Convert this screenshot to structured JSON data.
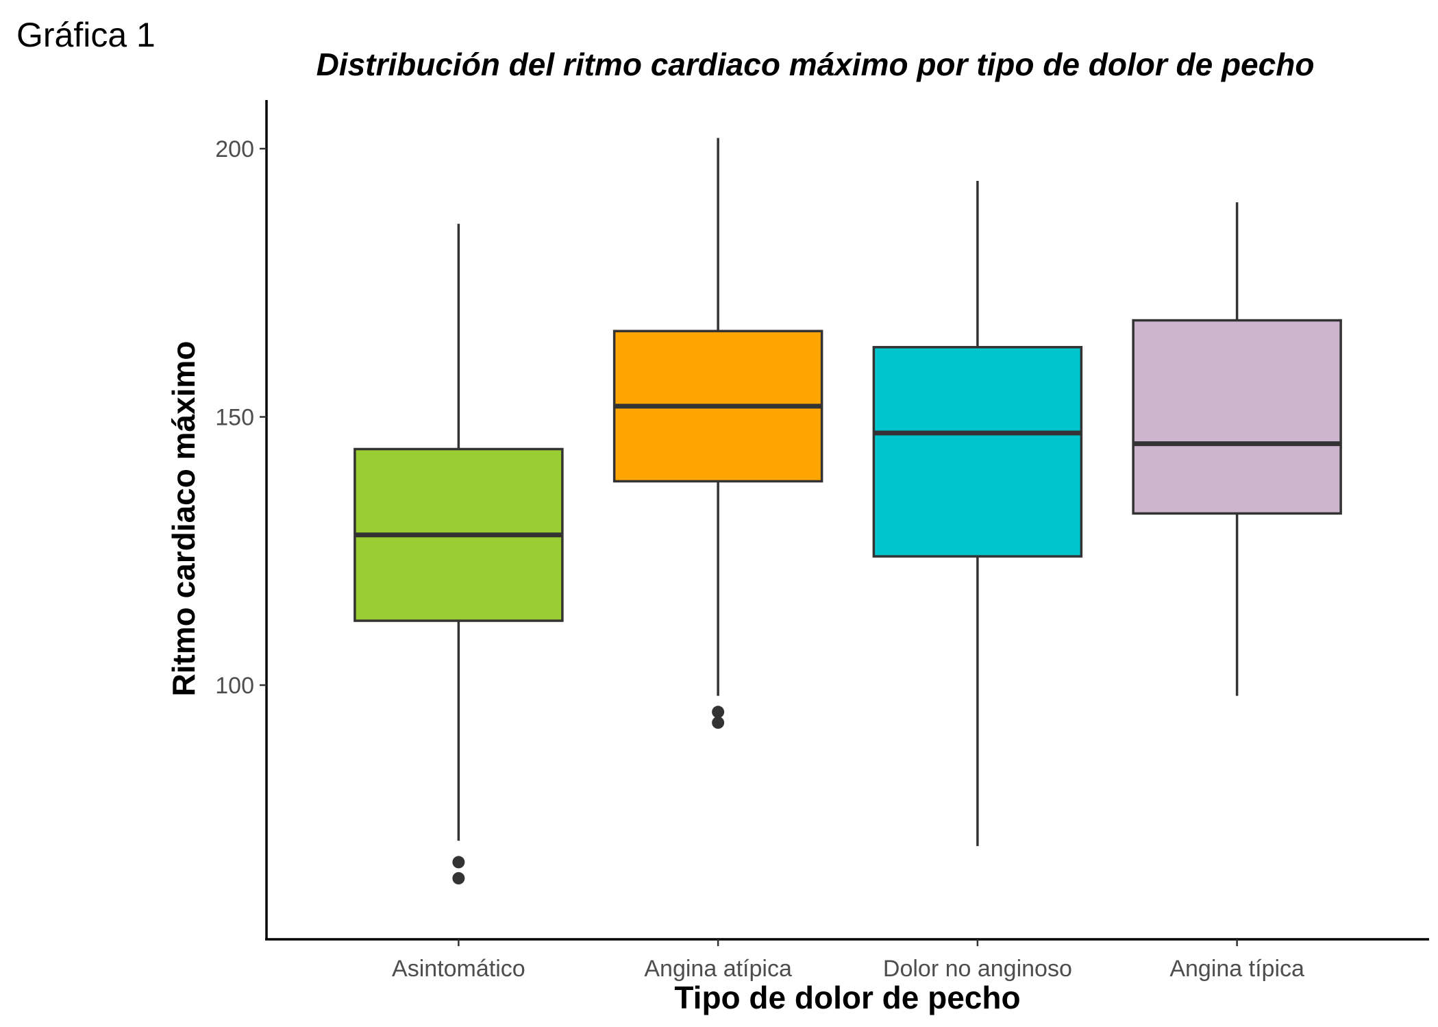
{
  "figure_label": "Gráfica 1",
  "chart_data": {
    "type": "boxplot",
    "title": "Distribución del ritmo cardiaco máximo por tipo de dolor de pecho",
    "xlabel": "Tipo de dolor de pecho",
    "ylabel": "Ritmo cardiaco máximo",
    "ylim": [
      65,
      210
    ],
    "yticks": [
      100,
      150,
      200
    ],
    "ytick_labels": [
      "100",
      "150",
      "200"
    ],
    "grid": false,
    "legend": "none",
    "categories": [
      "Asintomático",
      "Angina atípica",
      "Dolor no anginoso",
      "Angina típica"
    ],
    "boxes": [
      {
        "category": "Asintomático",
        "whisker_low": 71,
        "q1": 112,
        "median": 128,
        "q3": 144,
        "whisker_high": 186,
        "outliers": [
          64,
          67
        ],
        "color": "#9ACD32"
      },
      {
        "category": "Angina atípica",
        "whisker_low": 98,
        "q1": 138,
        "median": 152,
        "q3": 166,
        "whisker_high": 202,
        "outliers": [
          93,
          95
        ],
        "color": "#FFA500"
      },
      {
        "category": "Dolor no anginoso",
        "whisker_low": 70,
        "q1": 124,
        "median": 147,
        "q3": 163,
        "whisker_high": 194,
        "outliers": [],
        "color": "#00C5CD"
      },
      {
        "category": "Angina típica",
        "whisker_low": 98,
        "q1": 132,
        "median": 145,
        "q3": 168,
        "whisker_high": 190,
        "outliers": [],
        "color": "#CDB5CD"
      }
    ]
  }
}
